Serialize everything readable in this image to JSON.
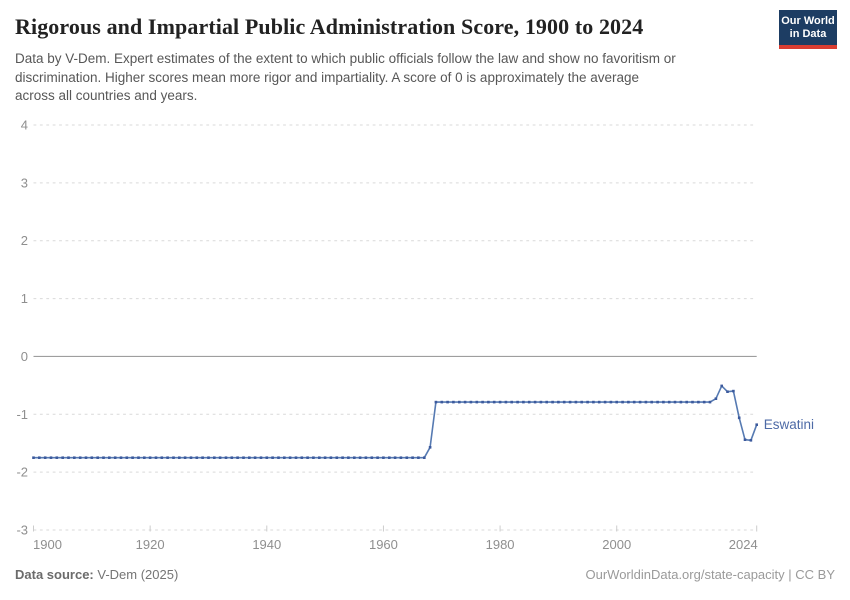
{
  "header": {
    "title": "Rigorous and Impartial Public Administration Score, 1900 to 2024",
    "subtitle_lines": [
      "Data by V-Dem. Expert estimates of the extent to which public officials follow the law and show no favoritism or",
      "discrimination. Higher scores mean more rigor and impartiality. A score of 0 is approximately the average",
      "across all countries and years."
    ],
    "logo": {
      "line1": "Our World",
      "line2": "in Data"
    }
  },
  "footer": {
    "source_label": "Data source:",
    "source_value": " V-Dem (2025)",
    "link": "OurWorldinData.org/state-capacity | CC BY"
  },
  "colors": {
    "line": "#567ab2",
    "marker": "#3c5a9d",
    "entity_label": "#4d6aa6",
    "grid": "#d9d9d9",
    "zero_line": "#9e9e9e",
    "tick": "#cccccc",
    "axis_text": "#8f8f8f",
    "logo_bg": "#1d3d63",
    "logo_stripe": "#d93d32"
  },
  "chart_data": {
    "type": "line",
    "title": "Rigorous and Impartial Public Administration Score, 1900 to 2024",
    "xlabel": "",
    "ylabel": "",
    "xlim": [
      1900,
      2024
    ],
    "ylim": [
      -3,
      4
    ],
    "x_ticks": [
      1900,
      1920,
      1940,
      1960,
      1980,
      2000,
      2024
    ],
    "y_ticks": [
      4,
      3,
      2,
      1,
      0,
      -1,
      -2,
      -3
    ],
    "grid": "dashed-horizontal",
    "legend_position": "end-of-line-label",
    "series": [
      {
        "name": "Eswatini",
        "start_year": 1900,
        "values": [
          -1.75,
          -1.75,
          -1.75,
          -1.75,
          -1.75,
          -1.75,
          -1.75,
          -1.75,
          -1.75,
          -1.75,
          -1.75,
          -1.75,
          -1.75,
          -1.75,
          -1.75,
          -1.75,
          -1.75,
          -1.75,
          -1.75,
          -1.75,
          -1.75,
          -1.75,
          -1.75,
          -1.75,
          -1.75,
          -1.75,
          -1.75,
          -1.75,
          -1.75,
          -1.75,
          -1.75,
          -1.75,
          -1.75,
          -1.75,
          -1.75,
          -1.75,
          -1.75,
          -1.75,
          -1.75,
          -1.75,
          -1.75,
          -1.75,
          -1.75,
          -1.75,
          -1.75,
          -1.75,
          -1.75,
          -1.75,
          -1.75,
          -1.75,
          -1.75,
          -1.75,
          -1.75,
          -1.75,
          -1.75,
          -1.75,
          -1.75,
          -1.75,
          -1.75,
          -1.75,
          -1.75,
          -1.75,
          -1.75,
          -1.75,
          -1.75,
          -1.75,
          -1.75,
          -1.75,
          -1.57,
          -0.79,
          -0.79,
          -0.79,
          -0.79,
          -0.79,
          -0.79,
          -0.79,
          -0.79,
          -0.79,
          -0.79,
          -0.79,
          -0.79,
          -0.79,
          -0.79,
          -0.79,
          -0.79,
          -0.79,
          -0.79,
          -0.79,
          -0.79,
          -0.79,
          -0.79,
          -0.79,
          -0.79,
          -0.79,
          -0.79,
          -0.79,
          -0.79,
          -0.79,
          -0.79,
          -0.79,
          -0.79,
          -0.79,
          -0.79,
          -0.79,
          -0.79,
          -0.79,
          -0.79,
          -0.79,
          -0.79,
          -0.79,
          -0.79,
          -0.79,
          -0.79,
          -0.79,
          -0.79,
          -0.79,
          -0.79,
          -0.73,
          -0.51,
          -0.61,
          -0.6,
          -1.06,
          -1.44,
          -1.45,
          -1.18
        ]
      }
    ]
  }
}
